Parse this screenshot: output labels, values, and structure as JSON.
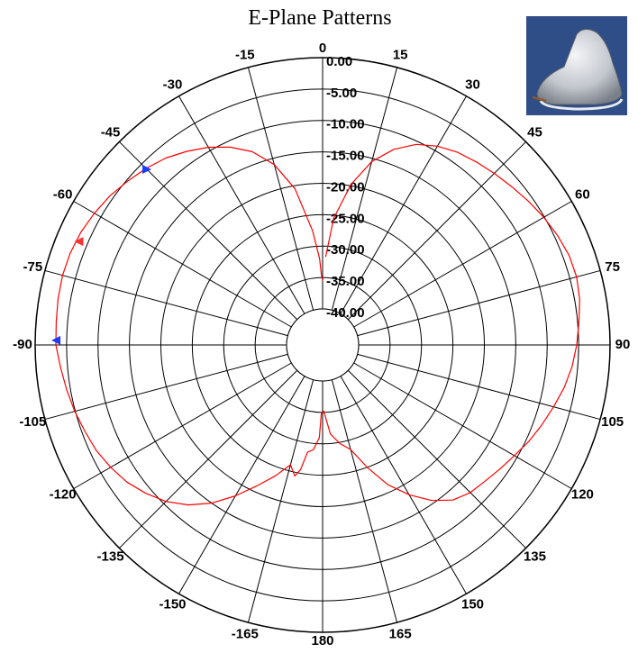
{
  "chart_data": {
    "type": "polar",
    "title": "E-Plane Patterns",
    "angle_ticks": [
      0,
      15,
      30,
      45,
      60,
      75,
      90,
      105,
      120,
      135,
      150,
      165,
      180,
      -165,
      -150,
      -135,
      -120,
      -105,
      -90,
      -75,
      -60,
      -45,
      -30,
      -15
    ],
    "ring_labels": [
      "0.00",
      "-5.00",
      "-10.00",
      "-15.00",
      "-20.00",
      "-25.00",
      "-30.00",
      "-35.00",
      "-40.00"
    ],
    "rlim": [
      -40,
      0
    ],
    "angle_direction": "clockwise",
    "zero_direction": "top",
    "grid": true,
    "series": [
      {
        "color": "#ff0000",
        "points": [
          [
            2,
            -31.7
          ],
          [
            5,
            -25.5
          ],
          [
            10,
            -19.8
          ],
          [
            15,
            -15.5
          ],
          [
            20,
            -12.6
          ],
          [
            25,
            -10.5
          ],
          [
            30,
            -9.2
          ],
          [
            35,
            -8.3
          ],
          [
            40,
            -7.7
          ],
          [
            45,
            -7.1
          ],
          [
            50,
            -6.5
          ],
          [
            55,
            -5.8
          ],
          [
            60,
            -5.1
          ],
          [
            65,
            -4.5
          ],
          [
            70,
            -4.0
          ],
          [
            75,
            -3.9
          ],
          [
            80,
            -4.2
          ],
          [
            85,
            -4.8
          ],
          [
            90,
            -5.3
          ],
          [
            95,
            -5.9
          ],
          [
            100,
            -6.7
          ],
          [
            105,
            -7.7
          ],
          [
            110,
            -8.6
          ],
          [
            115,
            -9.5
          ],
          [
            120,
            -10.5
          ],
          [
            125,
            -11.3
          ],
          [
            130,
            -12.0
          ],
          [
            135,
            -12.5
          ],
          [
            140,
            -13.5
          ],
          [
            145,
            -15.5
          ],
          [
            150,
            -18.2
          ],
          [
            155,
            -21.2
          ],
          [
            160,
            -25.0
          ],
          [
            165,
            -28.5
          ],
          [
            170,
            -29.8
          ],
          [
            175,
            -31.5
          ],
          [
            179,
            -35.2
          ],
          [
            -179,
            -35.0
          ],
          [
            -178,
            -31.0
          ],
          [
            -175,
            -29.0
          ],
          [
            -172,
            -28.5
          ],
          [
            -170,
            -25.6
          ],
          [
            -168,
            -24.4
          ],
          [
            -165,
            -26.0
          ],
          [
            -160,
            -23.5
          ],
          [
            -155,
            -21.0
          ],
          [
            -150,
            -18.0
          ],
          [
            -145,
            -15.0
          ],
          [
            -140,
            -12.5
          ],
          [
            -135,
            -10.5
          ],
          [
            -130,
            -9.0
          ],
          [
            -125,
            -7.7
          ],
          [
            -120,
            -6.8
          ],
          [
            -115,
            -6.0
          ],
          [
            -110,
            -5.5
          ],
          [
            -105,
            -4.9
          ],
          [
            -100,
            -4.4
          ],
          [
            -95,
            -3.9
          ],
          [
            -90,
            -3.3
          ],
          [
            -85,
            -3.2
          ],
          [
            -80,
            -3.0
          ],
          [
            -75,
            -2.9
          ],
          [
            -70,
            -3.0
          ],
          [
            -65,
            -3.3
          ],
          [
            -60,
            -3.8
          ],
          [
            -55,
            -4.4
          ],
          [
            -50,
            -5.2
          ],
          [
            -45,
            -6.0
          ],
          [
            -40,
            -6.9
          ],
          [
            -35,
            -8.1
          ],
          [
            -30,
            -9.4
          ],
          [
            -25,
            -11.0
          ],
          [
            -20,
            -13.0
          ],
          [
            -15,
            -16.0
          ],
          [
            -10,
            -20.5
          ],
          [
            -5,
            -27.5
          ],
          [
            -2,
            -32.0
          ],
          [
            -1,
            -34.5
          ],
          [
            0,
            -35.5
          ]
        ]
      }
    ],
    "markers": [
      {
        "angle": -45,
        "r": -6.2,
        "color": "#1a3cff",
        "direction": "right"
      },
      {
        "angle": -67,
        "r": -3.6,
        "color": "#ff3030",
        "direction": "left"
      },
      {
        "angle": -89,
        "r": -3.3,
        "color": "#1a3cff",
        "direction": "left"
      }
    ]
  },
  "photo": {
    "alt_icon": "antenna-photo",
    "background": "#2f4d86",
    "body_color": "#c9ccd2"
  }
}
